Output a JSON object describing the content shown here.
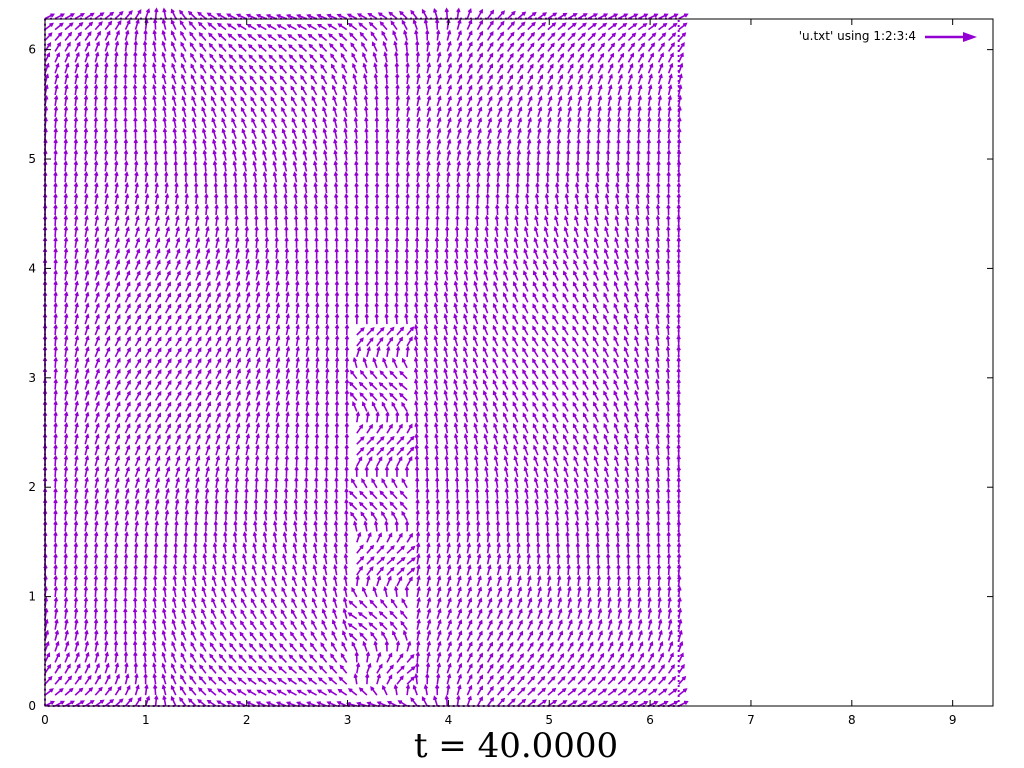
{
  "chart_data": {
    "type": "vector-field",
    "title": "t = 40.0000",
    "xlabel": "",
    "ylabel": "",
    "xlim": [
      0,
      9.4
    ],
    "ylim": [
      0,
      6.28
    ],
    "xticks": [
      "0",
      "1",
      "2",
      "3",
      "4",
      "5",
      "6",
      "7",
      "8",
      "9"
    ],
    "yticks": [
      "0",
      "1",
      "2",
      "3",
      "4",
      "5",
      "6"
    ],
    "grid": false,
    "legend": {
      "label": "'u.txt' using 1:2:3:4",
      "position": "top-right"
    },
    "series": [
      {
        "name": "'u.txt' using 1:2:3:4",
        "color": "#9400d3",
        "field_domain": {
          "x": [
            0,
            6.2832
          ],
          "y": [
            0,
            6.2832
          ]
        },
        "grid_points": 64,
        "dominant_direction": "vertical (+y)",
        "notes": "Dense arrow field; near-vertical arrows in the interior, diagonal arrows near the top and bottom edges, disturbance around x≈3.0–3.6, y<3.4."
      }
    ]
  }
}
